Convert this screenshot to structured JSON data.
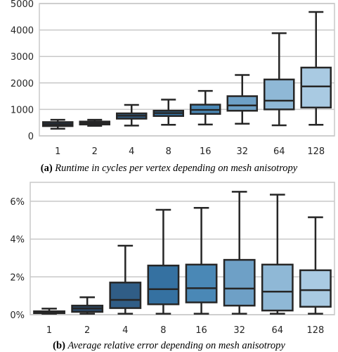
{
  "chart_data": [
    {
      "type": "box",
      "categories": [
        "1",
        "2",
        "4",
        "8",
        "16",
        "32",
        "64",
        "128"
      ],
      "ylim": [
        0,
        5000
      ],
      "yticks": [
        0,
        1000,
        2000,
        3000,
        4000,
        5000
      ],
      "ytick_labels": [
        "0",
        "1000",
        "2000",
        "3000",
        "4000",
        "5000"
      ],
      "grid": "horizontal",
      "boxes": [
        {
          "category": "1",
          "whislo": 270,
          "q1": 370,
          "median": 435,
          "q3": 520,
          "whishi": 610,
          "color": "#23384f"
        },
        {
          "category": "2",
          "whislo": 380,
          "q1": 430,
          "median": 480,
          "q3": 540,
          "whishi": 610,
          "color": "#2c4a69"
        },
        {
          "category": "4",
          "whislo": 390,
          "q1": 650,
          "median": 760,
          "q3": 850,
          "whishi": 1170,
          "color": "#305d86"
        },
        {
          "category": "8",
          "whislo": 420,
          "q1": 750,
          "median": 860,
          "q3": 950,
          "whishi": 1370,
          "color": "#3571a1"
        },
        {
          "category": "16",
          "whislo": 430,
          "q1": 830,
          "median": 980,
          "q3": 1180,
          "whishi": 1700,
          "color": "#4a88b6"
        },
        {
          "category": "32",
          "whislo": 460,
          "q1": 950,
          "median": 1150,
          "q3": 1500,
          "whishi": 2300,
          "color": "#6ea0c6"
        },
        {
          "category": "64",
          "whislo": 400,
          "q1": 1000,
          "median": 1330,
          "q3": 2130,
          "whishi": 3880,
          "color": "#8fb8d6"
        },
        {
          "category": "128",
          "whislo": 420,
          "q1": 1070,
          "median": 1870,
          "q3": 2580,
          "whishi": 4680,
          "color": "#a9cae2"
        }
      ],
      "caption_label": "(a)",
      "caption_text": "Runtime in cycles per vertex depending on mesh anisotropy"
    },
    {
      "type": "box",
      "categories": [
        "1",
        "2",
        "4",
        "8",
        "16",
        "32",
        "64",
        "128"
      ],
      "ylim": [
        0,
        7
      ],
      "yticks": [
        0,
        2,
        4,
        6
      ],
      "ytick_labels": [
        "0%",
        "2%",
        "4%",
        "6%"
      ],
      "grid": "horizontal",
      "boxes": [
        {
          "category": "1",
          "whislo": 0.05,
          "q1": 0.08,
          "median": 0.12,
          "q3": 0.18,
          "whishi": 0.32,
          "color": "#23384f"
        },
        {
          "category": "2",
          "whislo": 0.05,
          "q1": 0.15,
          "median": 0.33,
          "q3": 0.48,
          "whishi": 0.92,
          "color": "#2c4a69"
        },
        {
          "category": "4",
          "whislo": 0.05,
          "q1": 0.35,
          "median": 0.78,
          "q3": 1.7,
          "whishi": 3.65,
          "color": "#305d86"
        },
        {
          "category": "8",
          "whislo": 0.05,
          "q1": 0.55,
          "median": 1.35,
          "q3": 2.6,
          "whishi": 5.55,
          "color": "#3571a1"
        },
        {
          "category": "16",
          "whislo": 0.05,
          "q1": 0.65,
          "median": 1.4,
          "q3": 2.65,
          "whishi": 5.65,
          "color": "#4a88b6"
        },
        {
          "category": "32",
          "whislo": 0.05,
          "q1": 0.48,
          "median": 1.38,
          "q3": 2.9,
          "whishi": 6.5,
          "color": "#6ea0c6"
        },
        {
          "category": "64",
          "whislo": 0.05,
          "q1": 0.22,
          "median": 1.22,
          "q3": 2.65,
          "whishi": 6.35,
          "color": "#8fb8d6"
        },
        {
          "category": "128",
          "whislo": 0.05,
          "q1": 0.42,
          "median": 1.3,
          "q3": 2.35,
          "whishi": 5.15,
          "color": "#a9cae2"
        }
      ],
      "caption_label": "(b)",
      "caption_text": "Average relative error depending on mesh anisotropy"
    }
  ]
}
